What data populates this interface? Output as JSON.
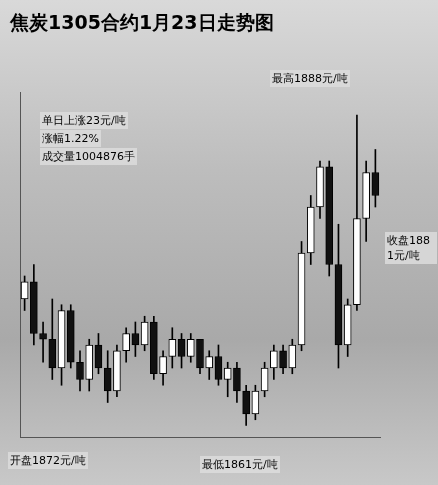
{
  "chart_data": {
    "type": "candlestick",
    "title": "焦炭1305合约1月23日走势图",
    "annotations": [
      "单日上涨23元/吨",
      "涨幅1.22%",
      "成交量1004876手",
      "开盘1872元/吨",
      "最低1861元/吨",
      "最高1888元/吨",
      "收盘1881元/吨"
    ],
    "categories": [
      null,
      null,
      null,
      null,
      null,
      null,
      null,
      null,
      null,
      null,
      null,
      null,
      null,
      null,
      null,
      null,
      null,
      null,
      null,
      null,
      null,
      null,
      null,
      null,
      null,
      null,
      null,
      null,
      null,
      null,
      null,
      null,
      null,
      null,
      null,
      null,
      null,
      null,
      null
    ],
    "open": [
      1872,
      1873.5,
      1869,
      1868.5,
      1866,
      1871,
      1866.5,
      1865,
      1868,
      1866,
      1864,
      1867.5,
      1869,
      1868,
      1870,
      1865.5,
      1867,
      1868.5,
      1867,
      1868.5,
      1866,
      1867,
      1865,
      1866,
      1864,
      1862,
      1864,
      1866,
      1867.5,
      1866,
      1868,
      1876,
      1880,
      1883.5,
      1875,
      1868,
      1871.5,
      1879,
      1883
    ],
    "high": [
      1874,
      1875,
      1870,
      1872,
      1871.5,
      1871.5,
      1867.5,
      1868.5,
      1869,
      1867.5,
      1868,
      1869.5,
      1870,
      1870.5,
      1870.5,
      1867.5,
      1869.5,
      1869,
      1869,
      1868.5,
      1867.5,
      1868,
      1866.5,
      1866.5,
      1864.5,
      1864.5,
      1866.5,
      1868,
      1868,
      1868.5,
      1877,
      1881,
      1884,
      1884,
      1878.5,
      1872,
      1888,
      1884,
      1885
    ],
    "low": [
      1871,
      1868,
      1866.5,
      1865,
      1864.5,
      1866,
      1864,
      1864,
      1865.5,
      1863,
      1863.5,
      1866.5,
      1867,
      1867.5,
      1865,
      1864.5,
      1866,
      1866,
      1866.5,
      1865.5,
      1865,
      1864.5,
      1863.5,
      1863,
      1861,
      1861.5,
      1863.5,
      1865,
      1865.5,
      1865.5,
      1867.5,
      1875,
      1879,
      1874,
      1866,
      1867,
      1871,
      1877,
      1880
    ],
    "close": [
      1873.5,
      1869,
      1868.5,
      1866,
      1871,
      1866.5,
      1865,
      1868,
      1866,
      1864,
      1867.5,
      1869,
      1868,
      1870,
      1865.5,
      1867,
      1868.5,
      1867,
      1868.5,
      1866,
      1867,
      1865,
      1866,
      1864,
      1862,
      1864,
      1866,
      1867.5,
      1866,
      1868,
      1876,
      1880,
      1883.5,
      1875,
      1868,
      1871.5,
      1879,
      1883,
      1881
    ],
    "colors": [
      "#ffffff",
      "#111111",
      "#111111",
      "#111111",
      "#ffffff",
      "#111111",
      "#111111",
      "#ffffff",
      "#111111",
      "#111111",
      "#ffffff",
      "#ffffff",
      "#111111",
      "#ffffff",
      "#111111",
      "#ffffff",
      "#ffffff",
      "#111111",
      "#ffffff",
      "#111111",
      "#ffffff",
      "#111111",
      "#ffffff",
      "#111111",
      "#111111",
      "#ffffff",
      "#ffffff",
      "#ffffff",
      "#111111",
      "#ffffff",
      "#ffffff",
      "#ffffff",
      "#ffffff",
      "#111111",
      "#111111",
      "#ffffff",
      "#ffffff",
      "#ffffff",
      "#111111"
    ],
    "ylim": [
      1860,
      1890
    ],
    "yticks": [],
    "tick_labels": false,
    "grid": false
  }
}
